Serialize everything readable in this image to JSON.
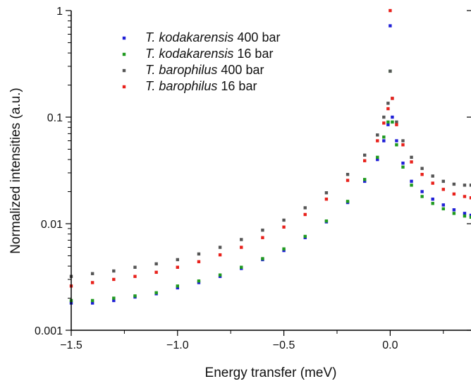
{
  "chart_data": {
    "type": "scatter",
    "xlabel": "Energy transfer (meV)",
    "ylabel": "Normalized intensities (a.u.)",
    "xlim": [
      -1.5,
      0.38
    ],
    "ylim": [
      0.001,
      1
    ],
    "y_scale": "log",
    "x_ticks": [
      {
        "value": -1.5,
        "label": "−1.5"
      },
      {
        "value": -1.0,
        "label": "−1.0"
      },
      {
        "value": -0.5,
        "label": "−0.5"
      },
      {
        "value": 0.0,
        "label": "0.0"
      }
    ],
    "y_ticks": [
      {
        "value": 0.001,
        "label": "0.001"
      },
      {
        "value": 0.01,
        "label": "0.01"
      },
      {
        "value": 0.1,
        "label": "0.1"
      },
      {
        "value": 1,
        "label": "1"
      }
    ],
    "grid": false,
    "legend_position": "top-left",
    "series": [
      {
        "name": "T. kodakarensis 400 bar",
        "legend_species": "T. kodakarensis",
        "legend_condition": " 400 bar",
        "color": "#1f1fd6",
        "points": [
          [
            -1.5,
            0.0018
          ],
          [
            -1.4,
            0.0018
          ],
          [
            -1.3,
            0.0019
          ],
          [
            -1.2,
            0.00205
          ],
          [
            -1.1,
            0.0022
          ],
          [
            -1.0,
            0.0025
          ],
          [
            -0.9,
            0.0028
          ],
          [
            -0.8,
            0.0032
          ],
          [
            -0.7,
            0.0038
          ],
          [
            -0.6,
            0.0046
          ],
          [
            -0.5,
            0.0056
          ],
          [
            -0.4,
            0.0074
          ],
          [
            -0.3,
            0.0104
          ],
          [
            -0.2,
            0.0158
          ],
          [
            -0.12,
            0.025
          ],
          [
            -0.06,
            0.04
          ],
          [
            -0.03,
            0.06
          ],
          [
            -0.01,
            0.085
          ],
          [
            0.0,
            0.72
          ],
          [
            0.01,
            0.1
          ],
          [
            0.03,
            0.06
          ],
          [
            0.06,
            0.037
          ],
          [
            0.1,
            0.025
          ],
          [
            0.15,
            0.02
          ],
          [
            0.2,
            0.017
          ],
          [
            0.25,
            0.015
          ],
          [
            0.3,
            0.0135
          ],
          [
            0.35,
            0.0125
          ],
          [
            0.38,
            0.012
          ]
        ]
      },
      {
        "name": "T. kodakarensis 16 bar",
        "legend_species": "T. kodakarensis",
        "legend_condition": " 16 bar",
        "color": "#1f9a1f",
        "points": [
          [
            -1.5,
            0.0019
          ],
          [
            -1.4,
            0.0019
          ],
          [
            -1.3,
            0.002
          ],
          [
            -1.2,
            0.0021
          ],
          [
            -1.1,
            0.00225
          ],
          [
            -1.0,
            0.0026
          ],
          [
            -0.9,
            0.0029
          ],
          [
            -0.8,
            0.0033
          ],
          [
            -0.7,
            0.0039
          ],
          [
            -0.6,
            0.0047
          ],
          [
            -0.5,
            0.0058
          ],
          [
            -0.4,
            0.0076
          ],
          [
            -0.3,
            0.0106
          ],
          [
            -0.2,
            0.0162
          ],
          [
            -0.12,
            0.026
          ],
          [
            -0.06,
            0.042
          ],
          [
            -0.03,
            0.065
          ],
          [
            -0.01,
            0.09
          ],
          [
            0.0,
            0.27
          ],
          [
            0.01,
            0.09
          ],
          [
            0.03,
            0.055
          ],
          [
            0.06,
            0.034
          ],
          [
            0.1,
            0.023
          ],
          [
            0.15,
            0.018
          ],
          [
            0.2,
            0.0155
          ],
          [
            0.25,
            0.0138
          ],
          [
            0.3,
            0.0125
          ],
          [
            0.35,
            0.0118
          ],
          [
            0.38,
            0.0115
          ]
        ]
      },
      {
        "name": "T. barophilus 400 bar",
        "legend_species": "T. barophilus",
        "legend_condition": " 400 bar",
        "color": "#555555",
        "points": [
          [
            -1.5,
            0.0032
          ],
          [
            -1.4,
            0.0034
          ],
          [
            -1.3,
            0.0036
          ],
          [
            -1.2,
            0.0039
          ],
          [
            -1.1,
            0.0042
          ],
          [
            -1.0,
            0.0046
          ],
          [
            -0.9,
            0.0052
          ],
          [
            -0.8,
            0.006
          ],
          [
            -0.7,
            0.0071
          ],
          [
            -0.6,
            0.0087
          ],
          [
            -0.5,
            0.0108
          ],
          [
            -0.4,
            0.0141
          ],
          [
            -0.3,
            0.0195
          ],
          [
            -0.2,
            0.029
          ],
          [
            -0.12,
            0.044
          ],
          [
            -0.06,
            0.068
          ],
          [
            -0.03,
            0.1
          ],
          [
            -0.01,
            0.135
          ],
          [
            0.0,
            0.27
          ],
          [
            0.01,
            0.15
          ],
          [
            0.03,
            0.09
          ],
          [
            0.06,
            0.06
          ],
          [
            0.1,
            0.042
          ],
          [
            0.15,
            0.033
          ],
          [
            0.2,
            0.028
          ],
          [
            0.25,
            0.025
          ],
          [
            0.3,
            0.0235
          ],
          [
            0.35,
            0.023
          ],
          [
            0.38,
            0.023
          ]
        ]
      },
      {
        "name": "T. barophilus 16 bar",
        "legend_species": "T. barophilus",
        "legend_condition": " 16 bar",
        "color": "#e8211b",
        "points": [
          [
            -1.5,
            0.0026
          ],
          [
            -1.4,
            0.0028
          ],
          [
            -1.3,
            0.003
          ],
          [
            -1.2,
            0.0032
          ],
          [
            -1.1,
            0.0035
          ],
          [
            -1.0,
            0.0039
          ],
          [
            -0.9,
            0.0044
          ],
          [
            -0.8,
            0.0051
          ],
          [
            -0.7,
            0.006
          ],
          [
            -0.6,
            0.0074
          ],
          [
            -0.5,
            0.0093
          ],
          [
            -0.4,
            0.0122
          ],
          [
            -0.3,
            0.017
          ],
          [
            -0.2,
            0.0255
          ],
          [
            -0.12,
            0.039
          ],
          [
            -0.06,
            0.06
          ],
          [
            -0.03,
            0.088
          ],
          [
            -0.01,
            0.12
          ],
          [
            0.0,
            1.0
          ],
          [
            0.01,
            0.15
          ],
          [
            0.03,
            0.085
          ],
          [
            0.06,
            0.055
          ],
          [
            0.1,
            0.038
          ],
          [
            0.15,
            0.029
          ],
          [
            0.2,
            0.024
          ],
          [
            0.25,
            0.021
          ],
          [
            0.3,
            0.019
          ],
          [
            0.35,
            0.018
          ],
          [
            0.38,
            0.0175
          ]
        ]
      }
    ]
  }
}
